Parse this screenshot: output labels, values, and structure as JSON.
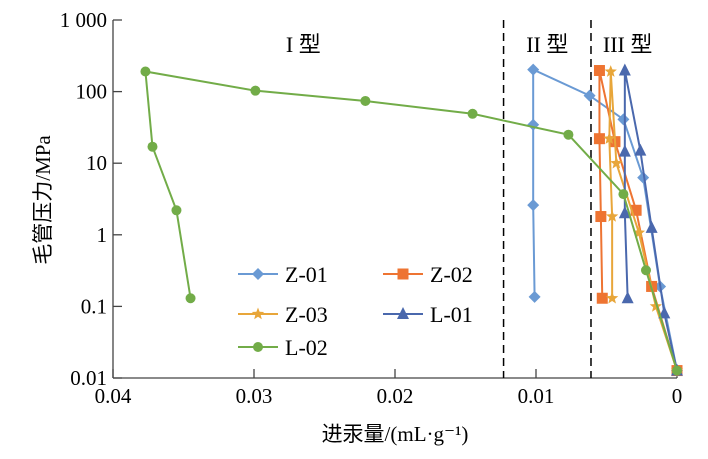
{
  "chart_data": {
    "type": "line",
    "title": "",
    "xlabel": "进汞量/(mL·g⁻¹)",
    "ylabel": "毛管压力/MPa",
    "xlim": [
      0.04,
      0
    ],
    "ylim": [
      0.01,
      1000
    ],
    "yscale": "log",
    "xticks": [
      "0.04",
      "0.03",
      "0.02",
      "0.01",
      "0"
    ],
    "xtick_values": [
      0.04,
      0.03,
      0.02,
      0.01,
      0
    ],
    "yticks": [
      "1 000",
      "100",
      "10",
      "1",
      "0.1",
      "0.01"
    ],
    "ytick_values": [
      1000,
      100,
      10,
      1,
      0.1,
      0.01
    ],
    "grid": false,
    "legend_position": "bottom-center",
    "region_dividers": [
      0.0123,
      0.0061
    ],
    "region_labels": [
      "I 型",
      "II 型",
      "III 型"
    ],
    "region_label_x": [
      0.0265,
      0.0092,
      0.0035
    ],
    "series": [
      {
        "name": "Z-01",
        "color": "#6a9ad4",
        "marker": "diamond",
        "points": [
          [
            0.0101,
            0.136
          ],
          [
            0.0102,
            2.6
          ],
          [
            0.0102,
            34.5
          ],
          [
            0.0102,
            203
          ],
          [
            0.0062,
            88
          ],
          [
            0.0038,
            41
          ],
          [
            0.0024,
            6.3
          ],
          [
            0.0012,
            0.19
          ],
          [
            0,
            0.0127
          ]
        ]
      },
      {
        "name": "Z-02",
        "color": "#ee7432",
        "marker": "square",
        "points": [
          [
            0.0053,
            0.13
          ],
          [
            0.0054,
            1.8
          ],
          [
            0.0055,
            22
          ],
          [
            0.0055,
            197
          ],
          [
            0.0044,
            20
          ],
          [
            0.0029,
            2.2
          ],
          [
            0.0018,
            0.19
          ],
          [
            0,
            0.0127
          ]
        ]
      },
      {
        "name": "Z-03",
        "color": "#e8a63a",
        "marker": "star",
        "points": [
          [
            0.0046,
            0.13
          ],
          [
            0.0046,
            1.8
          ],
          [
            0.0048,
            22
          ],
          [
            0.0047,
            190
          ],
          [
            0.0043,
            10
          ],
          [
            0.0027,
            1.07
          ],
          [
            0.0015,
            0.1
          ],
          [
            0,
            0.0127
          ]
        ]
      },
      {
        "name": "L-01",
        "color": "#4a68ad",
        "marker": "triangle",
        "points": [
          [
            0.0035,
            0.13
          ],
          [
            0.0037,
            2.0
          ],
          [
            0.0037,
            14.5
          ],
          [
            0.0037,
            197
          ],
          [
            0.0026,
            15
          ],
          [
            0.0018,
            1.25
          ],
          [
            0.0009,
            0.08
          ],
          [
            0,
            0.0127
          ]
        ]
      },
      {
        "name": "L-02",
        "color": "#72ac48",
        "marker": "circle",
        "points": [
          [
            0.0345,
            0.13
          ],
          [
            0.0355,
            2.2
          ],
          [
            0.0372,
            17
          ],
          [
            0.0377,
            191
          ],
          [
            0.0299,
            103
          ],
          [
            0.0221,
            74
          ],
          [
            0.0145,
            49
          ],
          [
            0.0077,
            25
          ],
          [
            0.0038,
            3.7
          ],
          [
            0.0022,
            0.32
          ],
          [
            0,
            0.0127
          ]
        ]
      }
    ]
  }
}
